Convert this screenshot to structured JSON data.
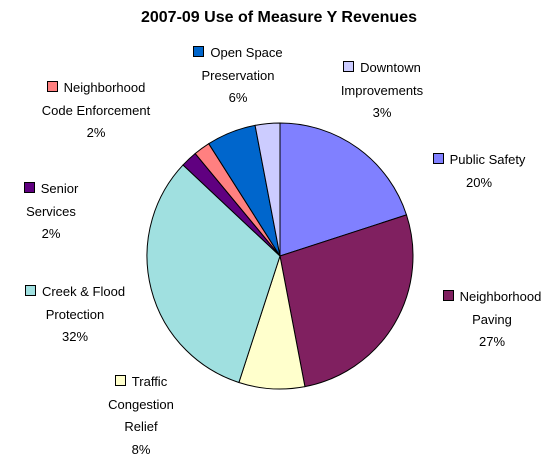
{
  "chart_data": {
    "type": "pie",
    "title": "2007-09 Use of Measure Y Revenues",
    "categories": [
      "Public Safety",
      "Neighborhood Paving",
      "Traffic Congestion Relief",
      "Creek & Flood Protection",
      "Senior Services",
      "Neighborhood Code Enforcement",
      "Open Space Preservation",
      "Downtown Improvements"
    ],
    "values": [
      20,
      27,
      8,
      32,
      2,
      2,
      6,
      3
    ],
    "value_labels": [
      "20%",
      "27%",
      "8%",
      "32%",
      "2%",
      "2%",
      "6%",
      "3%"
    ],
    "colors": [
      "#8080ff",
      "#802060",
      "#ffffcc",
      "#a0e0e0",
      "#600080",
      "#ff8080",
      "#0066cc",
      "#ccccff"
    ]
  }
}
